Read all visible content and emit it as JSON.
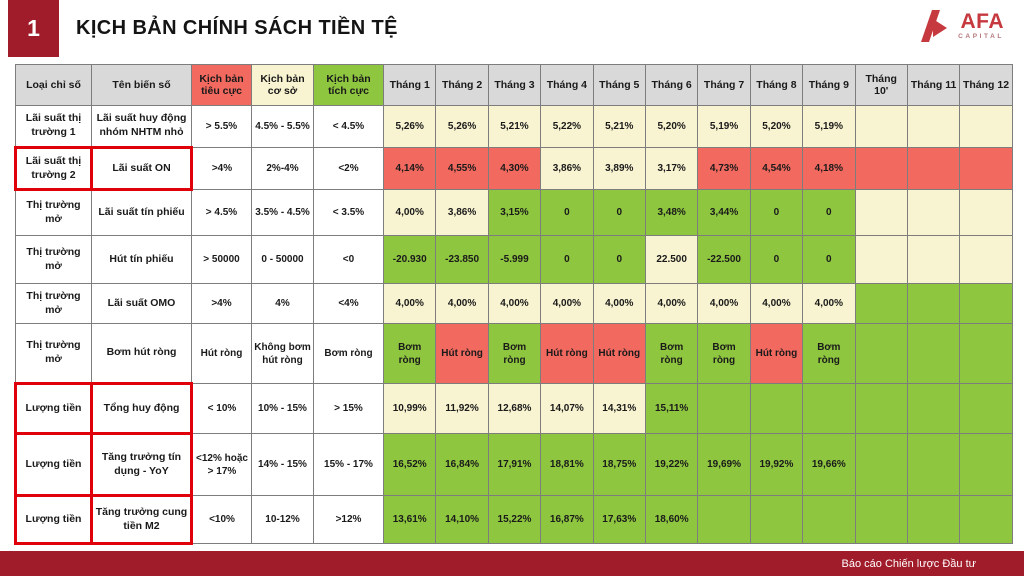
{
  "header": {
    "slide_number": "1",
    "title": "KỊCH BẢN CHÍNH SÁCH TIỀN TỆ"
  },
  "logo": {
    "name": "AFA",
    "sub": "CAPITAL"
  },
  "footer": {
    "text": "Báo cáo Chiến lược Đầu tư"
  },
  "colors": {
    "accent_dark_red": "#a11c2a",
    "logo_red": "#c5393f",
    "scenario_negative": "#f2695f",
    "scenario_base": "#f8f3d0",
    "scenario_positive": "#8ec63f",
    "header_gray": "#d9d9d9",
    "highlight_border": "#e0000a"
  },
  "table": {
    "columns": [
      "Loại chỉ số",
      "Tên biến số",
      "Kịch bản tiêu cực",
      "Kịch bản cơ sở",
      "Kịch bản tích cực",
      "Tháng 1",
      "Tháng 2",
      "Tháng 3",
      "Tháng 4",
      "Tháng 5",
      "Tháng 6",
      "Tháng 7",
      "Tháng 8",
      "Tháng 9",
      "Tháng 10'",
      "Tháng 11",
      "Tháng 12"
    ],
    "rows": [
      {
        "category": "Lãi suất thị trường 1",
        "variable": "Lãi suất huy động nhóm NHTM nhỏ",
        "negative": "> 5.5%",
        "base": "4.5% - 5.5%",
        "positive": "< 4.5%",
        "highlight": false,
        "months": [
          {
            "value": "5,26%",
            "color": "cream"
          },
          {
            "value": "5,26%",
            "color": "cream"
          },
          {
            "value": "5,21%",
            "color": "cream"
          },
          {
            "value": "5,22%",
            "color": "cream"
          },
          {
            "value": "5,21%",
            "color": "cream"
          },
          {
            "value": "5,20%",
            "color": "cream"
          },
          {
            "value": "5,19%",
            "color": "cream"
          },
          {
            "value": "5,20%",
            "color": "cream"
          },
          {
            "value": "5,19%",
            "color": "cream"
          },
          {
            "value": "",
            "color": "cream"
          },
          {
            "value": "",
            "color": "cream"
          },
          {
            "value": "",
            "color": "cream"
          }
        ]
      },
      {
        "category": "Lãi suất thị trường 2",
        "variable": "Lãi suất ON",
        "negative": ">4%",
        "base": "2%-4%",
        "positive": "<2%",
        "highlight": true,
        "months": [
          {
            "value": "4,14%",
            "color": "red"
          },
          {
            "value": "4,55%",
            "color": "red"
          },
          {
            "value": "4,30%",
            "color": "red"
          },
          {
            "value": "3,86%",
            "color": "cream"
          },
          {
            "value": "3,89%",
            "color": "cream"
          },
          {
            "value": "3,17%",
            "color": "cream"
          },
          {
            "value": "4,73%",
            "color": "red"
          },
          {
            "value": "4,54%",
            "color": "red"
          },
          {
            "value": "4,18%",
            "color": "red"
          },
          {
            "value": "",
            "color": "red"
          },
          {
            "value": "",
            "color": "red"
          },
          {
            "value": "",
            "color": "red"
          }
        ]
      },
      {
        "category": "Thị trường mở",
        "variable": "Lãi suất tín phiếu",
        "negative": "> 4.5%",
        "base": "3.5% - 4.5%",
        "positive": "< 3.5%",
        "highlight": false,
        "months": [
          {
            "value": "4,00%",
            "color": "cream"
          },
          {
            "value": "3,86%",
            "color": "cream"
          },
          {
            "value": "3,15%",
            "color": "green"
          },
          {
            "value": "0",
            "color": "green"
          },
          {
            "value": "0",
            "color": "green"
          },
          {
            "value": "3,48%",
            "color": "green"
          },
          {
            "value": "3,44%",
            "color": "green"
          },
          {
            "value": "0",
            "color": "green"
          },
          {
            "value": "0",
            "color": "green"
          },
          {
            "value": "",
            "color": "cream"
          },
          {
            "value": "",
            "color": "cream"
          },
          {
            "value": "",
            "color": "cream"
          }
        ]
      },
      {
        "category": "Thị trường mở",
        "variable": "Hút tín phiếu",
        "negative": "> 50000",
        "base": "0 - 50000",
        "positive": "<0",
        "highlight": false,
        "months": [
          {
            "value": "-20.930",
            "color": "green"
          },
          {
            "value": "-23.850",
            "color": "green"
          },
          {
            "value": "-5.999",
            "color": "green"
          },
          {
            "value": "0",
            "color": "green"
          },
          {
            "value": "0",
            "color": "green"
          },
          {
            "value": "22.500",
            "color": "cream"
          },
          {
            "value": "-22.500",
            "color": "green"
          },
          {
            "value": "0",
            "color": "green"
          },
          {
            "value": "0",
            "color": "green"
          },
          {
            "value": "",
            "color": "cream"
          },
          {
            "value": "",
            "color": "cream"
          },
          {
            "value": "",
            "color": "cream"
          }
        ]
      },
      {
        "category": "Thị trường mở",
        "variable": "Lãi suất OMO",
        "negative": ">4%",
        "base": "4%",
        "positive": "<4%",
        "highlight": false,
        "months": [
          {
            "value": "4,00%",
            "color": "cream"
          },
          {
            "value": "4,00%",
            "color": "cream"
          },
          {
            "value": "4,00%",
            "color": "cream"
          },
          {
            "value": "4,00%",
            "color": "cream"
          },
          {
            "value": "4,00%",
            "color": "cream"
          },
          {
            "value": "4,00%",
            "color": "cream"
          },
          {
            "value": "4,00%",
            "color": "cream"
          },
          {
            "value": "4,00%",
            "color": "cream"
          },
          {
            "value": "4,00%",
            "color": "cream"
          },
          {
            "value": "",
            "color": "green"
          },
          {
            "value": "",
            "color": "green"
          },
          {
            "value": "",
            "color": "green"
          }
        ]
      },
      {
        "category": "Thị trường mở",
        "variable": "Bơm hút ròng",
        "negative": "Hút ròng",
        "base": "Không bơm hút ròng",
        "positive": "Bơm ròng",
        "highlight": false,
        "months": [
          {
            "value": "Bơm ròng",
            "color": "green"
          },
          {
            "value": "Hút ròng",
            "color": "red"
          },
          {
            "value": "Bơm ròng",
            "color": "green"
          },
          {
            "value": "Hút ròng",
            "color": "red"
          },
          {
            "value": "Hút ròng",
            "color": "red"
          },
          {
            "value": "Bơm ròng",
            "color": "green"
          },
          {
            "value": "Bơm ròng",
            "color": "green"
          },
          {
            "value": "Hút ròng",
            "color": "red"
          },
          {
            "value": "Bơm ròng",
            "color": "green"
          },
          {
            "value": "",
            "color": "green"
          },
          {
            "value": "",
            "color": "green"
          },
          {
            "value": "",
            "color": "green"
          }
        ]
      },
      {
        "category": "Lượng tiền",
        "variable": "Tổng huy động",
        "negative": "< 10%",
        "base": "10% - 15%",
        "positive": "> 15%",
        "highlight": true,
        "months": [
          {
            "value": "10,99%",
            "color": "cream"
          },
          {
            "value": "11,92%",
            "color": "cream"
          },
          {
            "value": "12,68%",
            "color": "cream"
          },
          {
            "value": "14,07%",
            "color": "cream"
          },
          {
            "value": "14,31%",
            "color": "cream"
          },
          {
            "value": "15,11%",
            "color": "green"
          },
          {
            "value": "",
            "color": "green"
          },
          {
            "value": "",
            "color": "green"
          },
          {
            "value": "",
            "color": "green"
          },
          {
            "value": "",
            "color": "green"
          },
          {
            "value": "",
            "color": "green"
          },
          {
            "value": "",
            "color": "green"
          }
        ]
      },
      {
        "category": "Lượng tiền",
        "variable": "Tăng trưởng tín dụng - YoY",
        "negative": "<12% hoặc > 17%",
        "base": "14% - 15%",
        "positive": "15% - 17%",
        "highlight": true,
        "months": [
          {
            "value": "16,52%",
            "color": "green"
          },
          {
            "value": "16,84%",
            "color": "green"
          },
          {
            "value": "17,91%",
            "color": "green"
          },
          {
            "value": "18,81%",
            "color": "green"
          },
          {
            "value": "18,75%",
            "color": "green"
          },
          {
            "value": "19,22%",
            "color": "green"
          },
          {
            "value": "19,69%",
            "color": "green"
          },
          {
            "value": "19,92%",
            "color": "green"
          },
          {
            "value": "19,66%",
            "color": "green"
          },
          {
            "value": "",
            "color": "green"
          },
          {
            "value": "",
            "color": "green"
          },
          {
            "value": "",
            "color": "green"
          }
        ]
      },
      {
        "category": "Lượng tiền",
        "variable": "Tăng trưởng cung tiền M2",
        "negative": "<10%",
        "base": "10-12%",
        "positive": ">12%",
        "highlight": true,
        "months": [
          {
            "value": "13,61%",
            "color": "green"
          },
          {
            "value": "14,10%",
            "color": "green"
          },
          {
            "value": "15,22%",
            "color": "green"
          },
          {
            "value": "16,87%",
            "color": "green"
          },
          {
            "value": "17,63%",
            "color": "green"
          },
          {
            "value": "18,60%",
            "color": "green"
          },
          {
            "value": "",
            "color": "green"
          },
          {
            "value": "",
            "color": "green"
          },
          {
            "value": "",
            "color": "green"
          },
          {
            "value": "",
            "color": "green"
          },
          {
            "value": "",
            "color": "green"
          },
          {
            "value": "",
            "color": "green"
          }
        ]
      }
    ]
  }
}
